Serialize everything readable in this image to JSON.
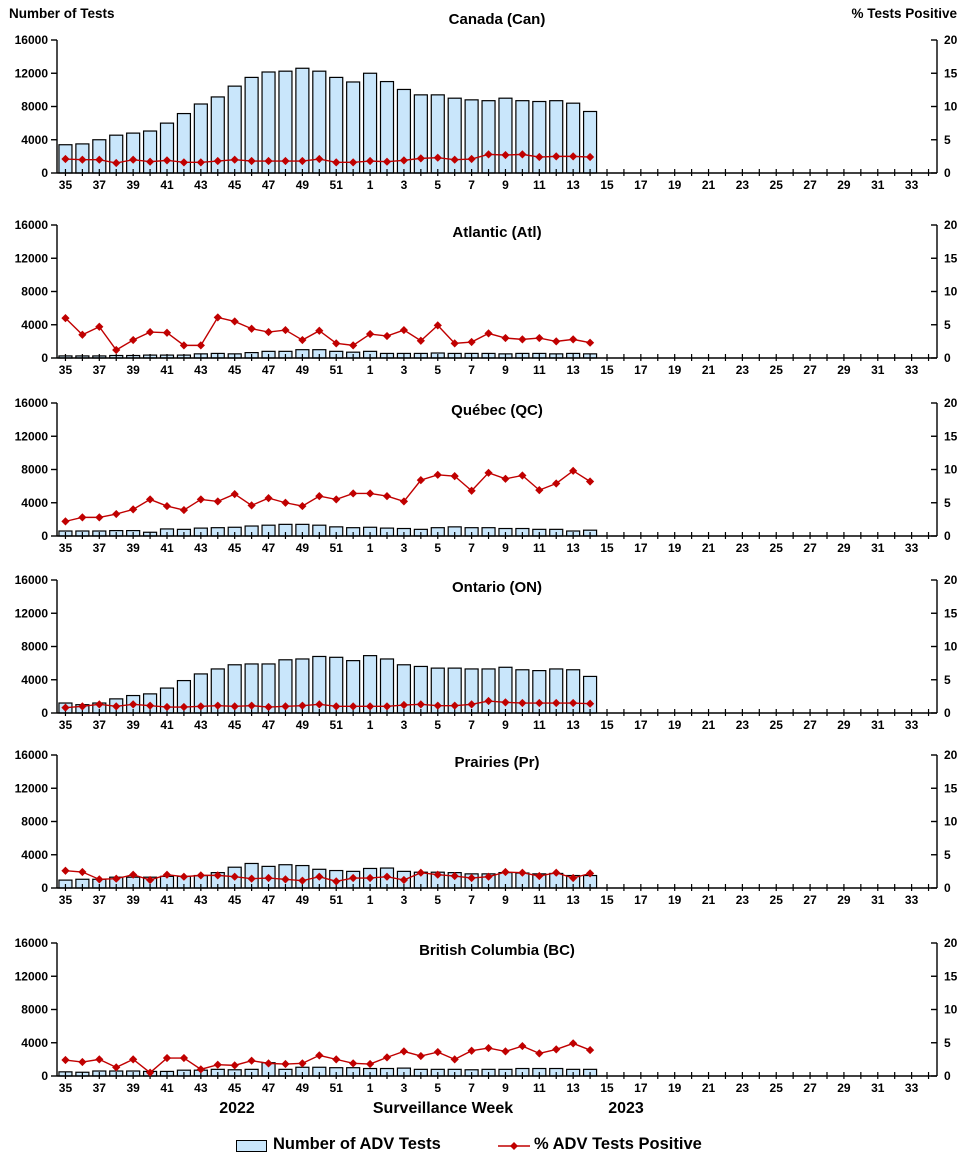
{
  "header": {
    "left_axis_label": "Number of Tests",
    "right_axis_label": "% Tests Positive"
  },
  "footer": {
    "year_left": "2022",
    "xlabel": "Surveillance Week",
    "year_right": "2023"
  },
  "legend": {
    "bars": "Number of ADV Tests",
    "line": "% ADV Tests Positive"
  },
  "colors": {
    "bar_fill": "#C9E6FB",
    "bar_stroke": "#000000",
    "line_color": "#C00000"
  },
  "axes": {
    "left_ticks": [
      0,
      4000,
      8000,
      12000,
      16000
    ],
    "right_ticks": [
      0,
      5,
      10,
      15,
      20
    ],
    "left_max": 16000,
    "right_max": 20,
    "weeks": [
      35,
      36,
      37,
      38,
      39,
      40,
      41,
      42,
      43,
      44,
      45,
      46,
      47,
      48,
      49,
      50,
      51,
      52,
      1,
      2,
      3,
      4,
      5,
      6,
      7,
      8,
      9,
      10,
      11,
      12,
      13,
      14,
      15,
      16,
      17,
      18,
      19,
      20,
      21,
      22,
      23,
      24,
      25,
      26,
      27,
      28,
      29,
      30,
      31,
      32,
      33,
      34
    ],
    "data_weeks": [
      35,
      36,
      37,
      38,
      39,
      40,
      41,
      42,
      43,
      44,
      45,
      46,
      47,
      48,
      49,
      50,
      51,
      52,
      1,
      2,
      3,
      4,
      5,
      6,
      7,
      8,
      9,
      10,
      11,
      12,
      13,
      14
    ]
  },
  "chart_data": [
    {
      "region": "Canada (Can)",
      "type": "bar",
      "ylim_left": [
        0,
        16000
      ],
      "ylim_right": [
        0,
        20
      ],
      "series": [
        {
          "name": "Number of ADV Tests",
          "axis": "left",
          "values": [
            3400,
            3500,
            4000,
            4550,
            4800,
            5050,
            6000,
            7150,
            8300,
            9150,
            10450,
            11500,
            12150,
            12250,
            12600,
            12250,
            11500,
            10950,
            12000,
            11000,
            10050,
            9400,
            9400,
            9000,
            8800,
            8700,
            9000,
            8700,
            8600,
            8700,
            8400,
            7400
          ]
        },
        {
          "name": "% ADV Tests Positive",
          "axis": "right",
          "values": [
            2.1,
            2.0,
            2.0,
            1.5,
            2.0,
            1.7,
            1.9,
            1.6,
            1.6,
            1.8,
            2.0,
            1.8,
            1.8,
            1.8,
            1.8,
            2.1,
            1.6,
            1.6,
            1.8,
            1.7,
            1.9,
            2.2,
            2.3,
            2.0,
            2.1,
            2.8,
            2.7,
            2.8,
            2.4,
            2.5,
            2.5,
            2.4
          ]
        }
      ]
    },
    {
      "region": "Atlantic (Atl)",
      "type": "bar",
      "ylim_left": [
        0,
        16000
      ],
      "ylim_right": [
        0,
        20
      ],
      "series": [
        {
          "name": "Number of ADV Tests",
          "axis": "left",
          "values": [
            250,
            250,
            250,
            300,
            300,
            350,
            350,
            350,
            500,
            550,
            500,
            650,
            800,
            800,
            1000,
            1000,
            800,
            700,
            800,
            550,
            550,
            550,
            600,
            550,
            550,
            550,
            500,
            550,
            550,
            500,
            550,
            500
          ]
        },
        {
          "name": "% ADV Tests Positive",
          "axis": "right",
          "values": [
            6.0,
            3.5,
            4.7,
            1.2,
            2.7,
            3.9,
            3.8,
            1.9,
            1.9,
            6.1,
            5.5,
            4.4,
            3.9,
            4.2,
            2.7,
            4.1,
            2.2,
            1.9,
            3.6,
            3.3,
            4.2,
            2.6,
            4.9,
            2.2,
            2.4,
            3.7,
            3.0,
            2.8,
            3.0,
            2.5,
            2.8,
            2.3
          ]
        }
      ]
    },
    {
      "region": "Québec (QC)",
      "type": "bar",
      "ylim_left": [
        0,
        16000
      ],
      "ylim_right": [
        0,
        20
      ],
      "series": [
        {
          "name": "Number of ADV Tests",
          "axis": "left",
          "values": [
            600,
            600,
            600,
            650,
            650,
            450,
            850,
            800,
            950,
            1000,
            1050,
            1200,
            1300,
            1400,
            1400,
            1300,
            1100,
            1000,
            1050,
            950,
            900,
            800,
            1000,
            1100,
            1000,
            1000,
            900,
            900,
            800,
            800,
            600,
            700
          ]
        },
        {
          "name": "% ADV Tests Positive",
          "axis": "right",
          "values": [
            2.2,
            2.8,
            2.8,
            3.3,
            4.0,
            5.5,
            4.5,
            3.9,
            5.5,
            5.2,
            6.3,
            4.6,
            5.7,
            5.0,
            4.5,
            6.0,
            5.5,
            6.4,
            6.4,
            6.0,
            5.2,
            8.4,
            9.2,
            9.0,
            6.8,
            9.5,
            8.6,
            9.1,
            6.9,
            7.9,
            9.8,
            8.2
          ]
        }
      ]
    },
    {
      "region": "Ontario (ON)",
      "type": "bar",
      "ylim_left": [
        0,
        16000
      ],
      "ylim_right": [
        0,
        20
      ],
      "series": [
        {
          "name": "Number of ADV Tests",
          "axis": "left",
          "values": [
            1200,
            1000,
            1200,
            1700,
            2100,
            2300,
            3000,
            3900,
            4700,
            5300,
            5800,
            5900,
            5900,
            6400,
            6500,
            6800,
            6700,
            6300,
            6900,
            6500,
            5800,
            5600,
            5400,
            5400,
            5300,
            5300,
            5500,
            5200,
            5100,
            5300,
            5200,
            4400
          ]
        },
        {
          "name": "% ADV Tests Positive",
          "axis": "right",
          "values": [
            0.8,
            1.0,
            1.3,
            1.0,
            1.3,
            1.1,
            0.9,
            0.9,
            1.0,
            1.1,
            1.0,
            1.1,
            0.9,
            1.0,
            1.1,
            1.3,
            1.0,
            1.0,
            1.0,
            1.0,
            1.2,
            1.3,
            1.1,
            1.1,
            1.3,
            1.8,
            1.6,
            1.5,
            1.5,
            1.5,
            1.5,
            1.4
          ]
        }
      ]
    },
    {
      "region": "Prairies (Pr)",
      "type": "bar",
      "ylim_left": [
        0,
        16000
      ],
      "ylim_right": [
        0,
        20
      ],
      "series": [
        {
          "name": "Number of ADV Tests",
          "axis": "left",
          "values": [
            950,
            1050,
            1050,
            1300,
            1300,
            1300,
            1400,
            1400,
            1500,
            1850,
            2500,
            2950,
            2600,
            2800,
            2700,
            2250,
            2100,
            2000,
            2350,
            2400,
            2000,
            1900,
            1900,
            1850,
            1700,
            1700,
            1850,
            1800,
            1700,
            1750,
            1500,
            1500
          ]
        },
        {
          "name": "% ADV Tests Positive",
          "axis": "right",
          "values": [
            2.6,
            2.4,
            1.3,
            1.4,
            2.0,
            1.2,
            2.0,
            1.7,
            1.9,
            1.9,
            1.7,
            1.4,
            1.5,
            1.3,
            1.1,
            1.7,
            1.0,
            1.5,
            1.5,
            1.7,
            1.2,
            2.3,
            2.0,
            1.8,
            1.5,
            1.7,
            2.4,
            2.3,
            1.8,
            2.3,
            1.5,
            2.2
          ]
        }
      ]
    },
    {
      "region": "British Columbia (BC)",
      "type": "bar",
      "ylim_left": [
        0,
        16000
      ],
      "ylim_right": [
        0,
        20
      ],
      "series": [
        {
          "name": "Number of ADV Tests",
          "axis": "left",
          "values": [
            500,
            450,
            600,
            600,
            600,
            550,
            550,
            700,
            700,
            800,
            750,
            800,
            1600,
            800,
            1050,
            1050,
            1000,
            1000,
            900,
            900,
            950,
            800,
            800,
            800,
            750,
            800,
            800,
            900,
            900,
            900,
            800,
            800
          ]
        },
        {
          "name": "% ADV Tests Positive",
          "axis": "right",
          "values": [
            2.4,
            2.1,
            2.5,
            1.3,
            2.5,
            0.5,
            2.7,
            2.7,
            1.0,
            1.7,
            1.6,
            2.3,
            1.9,
            1.8,
            1.9,
            3.1,
            2.5,
            1.9,
            1.8,
            2.8,
            3.7,
            3.0,
            3.6,
            2.5,
            3.8,
            4.2,
            3.7,
            4.5,
            3.4,
            4.0,
            4.9,
            3.9
          ]
        }
      ]
    }
  ]
}
